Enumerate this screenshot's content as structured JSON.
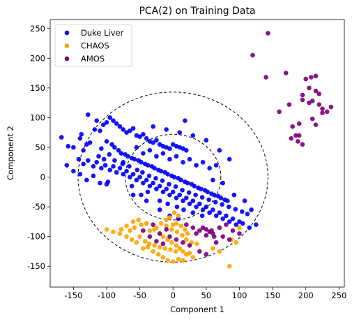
{
  "chart_data": {
    "type": "scatter",
    "title": "PCA(2) on Training Data",
    "xlabel": "Component 1",
    "ylabel": "Component 2",
    "xlim": [
      -185,
      258
    ],
    "ylim": [
      -185,
      265
    ],
    "xticks": [
      -150,
      -100,
      -50,
      0,
      50,
      100,
      150,
      200,
      250
    ],
    "yticks": [
      -150,
      -100,
      -50,
      0,
      50,
      100,
      150,
      200,
      250
    ],
    "grid": false,
    "legend_position": "top-left",
    "circles": [
      {
        "center": [
          0,
          0
        ],
        "radius": 72,
        "style": "dashed",
        "color": "#000000"
      },
      {
        "center": [
          0,
          0
        ],
        "radius": 143,
        "style": "dashed",
        "color": "#000000"
      }
    ],
    "series": [
      {
        "name": "Duke Liver",
        "color": "#0000ff",
        "points": [
          [
            -168,
            67
          ],
          [
            -158,
            52
          ],
          [
            -150,
            50
          ],
          [
            -140,
            65
          ],
          [
            -138,
            72
          ],
          [
            -135,
            45
          ],
          [
            -130,
            55
          ],
          [
            -125,
            58
          ],
          [
            -118,
            80
          ],
          [
            -110,
            78
          ],
          [
            -105,
            88
          ],
          [
            -128,
            105
          ],
          [
            -115,
            95
          ],
          [
            -100,
            92
          ],
          [
            -95,
            100
          ],
          [
            -90,
            95
          ],
          [
            -85,
            90
          ],
          [
            -80,
            85
          ],
          [
            -75,
            80
          ],
          [
            -70,
            75
          ],
          [
            -65,
            78
          ],
          [
            -60,
            82
          ],
          [
            -55,
            70
          ],
          [
            -50,
            68
          ],
          [
            -45,
            72
          ],
          [
            -40,
            65
          ],
          [
            -35,
            60
          ],
          [
            -30,
            58
          ],
          [
            -25,
            62
          ],
          [
            -20,
            55
          ],
          [
            -15,
            52
          ],
          [
            -10,
            50
          ],
          [
            -5,
            48
          ],
          [
            0,
            55
          ],
          [
            5,
            52
          ],
          [
            10,
            50
          ],
          [
            15,
            48
          ],
          [
            20,
            45
          ],
          [
            18,
            95
          ],
          [
            -100,
            60
          ],
          [
            -92,
            55
          ],
          [
            -88,
            50
          ],
          [
            -82,
            45
          ],
          [
            -78,
            40
          ],
          [
            -72,
            38
          ],
          [
            -68,
            35
          ],
          [
            -62,
            32
          ],
          [
            -58,
            30
          ],
          [
            -52,
            28
          ],
          [
            -48,
            25
          ],
          [
            -42,
            22
          ],
          [
            -38,
            20
          ],
          [
            -32,
            18
          ],
          [
            -28,
            15
          ],
          [
            -22,
            12
          ],
          [
            -18,
            10
          ],
          [
            -12,
            8
          ],
          [
            -8,
            5
          ],
          [
            -2,
            2
          ],
          [
            2,
            0
          ],
          [
            8,
            -2
          ],
          [
            12,
            -5
          ],
          [
            18,
            -8
          ],
          [
            22,
            -10
          ],
          [
            28,
            -12
          ],
          [
            32,
            -15
          ],
          [
            38,
            -18
          ],
          [
            42,
            -20
          ],
          [
            48,
            -22
          ],
          [
            52,
            -25
          ],
          [
            58,
            -28
          ],
          [
            62,
            -30
          ],
          [
            68,
            -32
          ],
          [
            72,
            -35
          ],
          [
            78,
            -38
          ],
          [
            82,
            -40
          ],
          [
            -142,
            30
          ],
          [
            -135,
            22
          ],
          [
            -128,
            28
          ],
          [
            -120,
            18
          ],
          [
            -115,
            25
          ],
          [
            -108,
            15
          ],
          [
            -102,
            20
          ],
          [
            -95,
            12
          ],
          [
            -90,
            18
          ],
          [
            -85,
            8
          ],
          [
            -80,
            15
          ],
          [
            -75,
            5
          ],
          [
            -70,
            10
          ],
          [
            -65,
            0
          ],
          [
            -60,
            5
          ],
          [
            -55,
            -5
          ],
          [
            -50,
            0
          ],
          [
            -45,
            -10
          ],
          [
            -40,
            -5
          ],
          [
            -35,
            -15
          ],
          [
            -30,
            -10
          ],
          [
            -25,
            -20
          ],
          [
            -20,
            -15
          ],
          [
            -15,
            -25
          ],
          [
            -10,
            -20
          ],
          [
            -5,
            -30
          ],
          [
            0,
            -25
          ],
          [
            5,
            -35
          ],
          [
            10,
            -30
          ],
          [
            15,
            -40
          ],
          [
            20,
            -35
          ],
          [
            25,
            -45
          ],
          [
            30,
            -40
          ],
          [
            35,
            -50
          ],
          [
            40,
            -45
          ],
          [
            45,
            -55
          ],
          [
            50,
            -50
          ],
          [
            55,
            -60
          ],
          [
            60,
            -55
          ],
          [
            65,
            -65
          ],
          [
            70,
            -60
          ],
          [
            75,
            -70
          ],
          [
            80,
            -65
          ],
          [
            85,
            -75
          ],
          [
            90,
            -70
          ],
          [
            95,
            -80
          ],
          [
            100,
            -75
          ],
          [
            105,
            -78
          ],
          [
            115,
            -85
          ],
          [
            125,
            -80
          ],
          [
            -160,
            20
          ],
          [
            -150,
            10
          ],
          [
            -140,
            5
          ],
          [
            -130,
            -5
          ],
          [
            -120,
            2
          ],
          [
            -110,
            -10
          ],
          [
            -98,
            -8
          ],
          [
            -108,
            48
          ],
          [
            -112,
            35
          ],
          [
            -104,
            30
          ],
          [
            -96,
            38
          ],
          [
            -88,
            28
          ],
          [
            -76,
            22
          ],
          [
            -66,
            18
          ],
          [
            -54,
            12
          ],
          [
            -46,
            8
          ],
          [
            -36,
            2
          ],
          [
            -26,
            -2
          ],
          [
            -16,
            -6
          ],
          [
            -6,
            -12
          ],
          [
            4,
            -16
          ],
          [
            14,
            -22
          ],
          [
            24,
            -26
          ],
          [
            34,
            -30
          ],
          [
            44,
            -34
          ],
          [
            54,
            -38
          ],
          [
            64,
            -42
          ],
          [
            74,
            -46
          ],
          [
            84,
            -50
          ],
          [
            94,
            -54
          ],
          [
            104,
            -58
          ],
          [
            112,
            -62
          ],
          [
            -62,
            -15
          ],
          [
            -48,
            -30
          ],
          [
            -38,
            -25
          ],
          [
            -20,
            -40
          ],
          [
            -8,
            -45
          ],
          [
            6,
            -50
          ],
          [
            16,
            -55
          ],
          [
            30,
            -60
          ],
          [
            44,
            -65
          ],
          [
            -75,
            25
          ],
          [
            -45,
            40
          ],
          [
            -25,
            35
          ],
          [
            -5,
            30
          ],
          [
            15,
            25
          ],
          [
            35,
            20
          ],
          [
            55,
            15
          ],
          [
            -30,
            85
          ],
          [
            -10,
            80
          ],
          [
            10,
            75
          ],
          [
            30,
            70
          ],
          [
            50,
            62
          ],
          [
            70,
            45
          ],
          [
            85,
            30
          ],
          [
            -55,
            50
          ],
          [
            -35,
            45
          ],
          [
            -15,
            40
          ],
          [
            5,
            35
          ],
          [
            25,
            30
          ],
          [
            45,
            25
          ],
          [
            65,
            20
          ],
          [
            -20,
            -55
          ],
          [
            -5,
            -65
          ],
          [
            8,
            -70
          ],
          [
            -40,
            -40
          ],
          [
            -60,
            -30
          ],
          [
            -100,
            -12
          ],
          [
            60,
            -5
          ],
          [
            75,
            -10
          ],
          [
            92,
            -30
          ],
          [
            108,
            -40
          ],
          [
            118,
            -55
          ]
        ]
      },
      {
        "name": "CHAOS",
        "color": "#ffa500",
        "points": [
          [
            -60,
            -75
          ],
          [
            -52,
            -72
          ],
          [
            -48,
            -80
          ],
          [
            -40,
            -78
          ],
          [
            -35,
            -90
          ],
          [
            -28,
            -88
          ],
          [
            -20,
            -95
          ],
          [
            -15,
            -100
          ],
          [
            -8,
            -105
          ],
          [
            -2,
            -110
          ],
          [
            5,
            -115
          ],
          [
            10,
            -120
          ],
          [
            15,
            -125
          ],
          [
            20,
            -130
          ],
          [
            25,
            -128
          ],
          [
            30,
            -135
          ],
          [
            -45,
            -120
          ],
          [
            -38,
            -118
          ],
          [
            -30,
            -125
          ],
          [
            -22,
            -130
          ],
          [
            -15,
            -135
          ],
          [
            -8,
            -140
          ],
          [
            0,
            -142
          ],
          [
            8,
            -138
          ],
          [
            15,
            -140
          ],
          [
            -55,
            -110
          ],
          [
            -62,
            -105
          ],
          [
            -70,
            -100
          ],
          [
            -80,
            -95
          ],
          [
            -90,
            -92
          ],
          [
            -100,
            -88
          ],
          [
            0,
            -80
          ],
          [
            5,
            -78
          ],
          [
            12,
            -82
          ],
          [
            18,
            -88
          ],
          [
            22,
            -95
          ],
          [
            -10,
            -72
          ],
          [
            -5,
            -68
          ],
          [
            60,
            -120
          ],
          [
            70,
            -125
          ],
          [
            85,
            -150
          ],
          [
            100,
            -85
          ],
          [
            88,
            -105
          ],
          [
            95,
            -110
          ],
          [
            -50,
            -100
          ],
          [
            -42,
            -108
          ],
          [
            -36,
            -112
          ],
          [
            -28,
            -115
          ],
          [
            -20,
            -118
          ],
          [
            -12,
            -120
          ],
          [
            -4,
            -122
          ],
          [
            4,
            -125
          ],
          [
            -25,
            -85
          ],
          [
            -18,
            -78
          ],
          [
            -10,
            -82
          ],
          [
            -2,
            -88
          ],
          [
            6,
            -92
          ],
          [
            14,
            -98
          ],
          [
            20,
            -105
          ],
          [
            28,
            -110
          ],
          [
            36,
            -112
          ],
          [
            -65,
            -90
          ],
          [
            -58,
            -85
          ],
          [
            -70,
            -82
          ],
          [
            -78,
            -88
          ],
          [
            2,
            -60
          ],
          [
            8,
            -65
          ]
        ]
      },
      {
        "name": "AMOS",
        "color": "#800080",
        "points": [
          [
            143,
            242
          ],
          [
            120,
            205
          ],
          [
            170,
            175
          ],
          [
            140,
            168
          ],
          [
            215,
            170
          ],
          [
            208,
            168
          ],
          [
            200,
            165
          ],
          [
            205,
            150
          ],
          [
            215,
            145
          ],
          [
            220,
            140
          ],
          [
            195,
            138
          ],
          [
            210,
            128
          ],
          [
            205,
            125
          ],
          [
            220,
            122
          ],
          [
            225,
            115
          ],
          [
            232,
            110
          ],
          [
            238,
            118
          ],
          [
            225,
            108
          ],
          [
            175,
            122
          ],
          [
            160,
            110
          ],
          [
            190,
            90
          ],
          [
            180,
            85
          ],
          [
            185,
            70
          ],
          [
            178,
            65
          ],
          [
            188,
            60
          ],
          [
            195,
            55
          ],
          [
            210,
            98
          ],
          [
            215,
            88
          ],
          [
            190,
            70
          ],
          [
            195,
            130
          ],
          [
            45,
            -85
          ],
          [
            50,
            -88
          ],
          [
            55,
            -92
          ],
          [
            60,
            -95
          ],
          [
            58,
            -90
          ],
          [
            62,
            -100
          ],
          [
            -20,
            -95
          ],
          [
            -10,
            -88
          ],
          [
            -30,
            -80
          ],
          [
            -5,
            -100
          ],
          [
            5,
            -105
          ],
          [
            15,
            -110
          ],
          [
            25,
            -115
          ],
          [
            35,
            -95
          ],
          [
            40,
            -90
          ],
          [
            70,
            -85
          ],
          [
            80,
            -80
          ],
          [
            90,
            -90
          ],
          [
            100,
            -95
          ],
          [
            75,
            -100
          ],
          [
            85,
            -105
          ],
          [
            40,
            -125
          ],
          [
            50,
            -130
          ],
          [
            -45,
            -90
          ],
          [
            -35,
            -100
          ],
          [
            -25,
            -108
          ],
          [
            -15,
            -112
          ],
          [
            50,
            -98
          ],
          [
            65,
            -110
          ],
          [
            30,
            -85
          ],
          [
            20,
            -80
          ]
        ]
      }
    ]
  }
}
